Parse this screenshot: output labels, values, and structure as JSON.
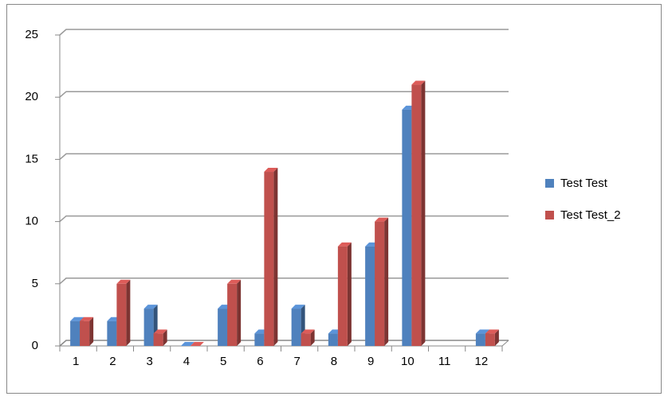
{
  "chart_data": {
    "type": "bar",
    "categories": [
      "1",
      "2",
      "3",
      "4",
      "5",
      "6",
      "7",
      "8",
      "9",
      "10",
      "11",
      "12"
    ],
    "series": [
      {
        "name": "Test Test",
        "color": "#4f81bd",
        "values": [
          2,
          2,
          3,
          0,
          3,
          1,
          3,
          1,
          8,
          19,
          null,
          1
        ]
      },
      {
        "name": "Test Test_2",
        "color": "#c0504d",
        "values": [
          2,
          5,
          1,
          0,
          5,
          14,
          1,
          8,
          10,
          21,
          null,
          1
        ]
      }
    ],
    "ylim": [
      0,
      25
    ],
    "yticks": [
      0,
      5,
      10,
      15,
      20,
      25
    ],
    "grid": true,
    "legend": "right"
  }
}
